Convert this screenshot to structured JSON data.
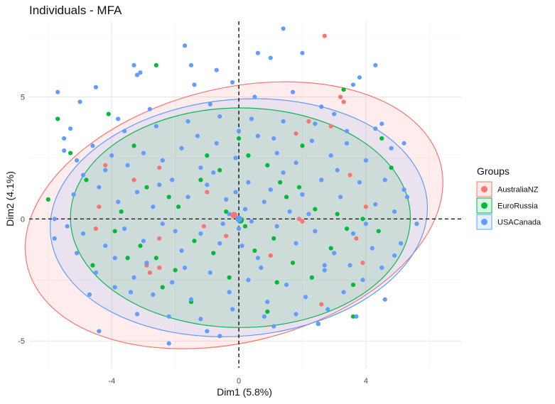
{
  "chart_data": {
    "type": "scatter",
    "title": "Individuals - MFA",
    "xlabel": "Dim1 (5.8%)",
    "ylabel": "Dim2 (4.1%)",
    "xlim": [
      -6.6,
      7.0
    ],
    "ylim": [
      -6.1,
      8.1
    ],
    "x_ticks": [
      -4,
      0,
      4
    ],
    "y_ticks": [
      -5,
      0,
      5
    ],
    "x_tick_labels": [
      "-4",
      "0",
      "4"
    ],
    "y_tick_labels": [
      "-5",
      "0",
      "5"
    ],
    "grid": true,
    "reference_lines": {
      "x": 0,
      "y": 0,
      "style": "dashed"
    },
    "legend": {
      "title": "Groups",
      "placement": "right"
    },
    "series": [
      {
        "name": "AustraliaNZ",
        "color": "#F8766D",
        "centroid": [
          -0.15,
          0.15
        ],
        "ellipse": {
          "cx": -0.15,
          "cy": 0.15,
          "rx": 6.7,
          "ry": 5.2,
          "angle_deg": 14
        },
        "points": [
          [
            2.7,
            7.5
          ],
          [
            3.2,
            5.0
          ],
          [
            3.3,
            4.8
          ],
          [
            -4.2,
            2.2
          ],
          [
            2.9,
            3.8
          ],
          [
            2.2,
            4.0
          ],
          [
            -4.4,
            0.5
          ],
          [
            -4.5,
            -0.4
          ],
          [
            -1.1,
            -0.3
          ],
          [
            1.9,
            0.0
          ],
          [
            2.0,
            -0.1
          ],
          [
            3.7,
            -0.8
          ],
          [
            4.0,
            0.5
          ],
          [
            -0.4,
            -0.7
          ],
          [
            -2.5,
            -2.0
          ],
          [
            -2.9,
            -1.9
          ],
          [
            -2.5,
            -0.8
          ],
          [
            -3.3,
            1.6
          ],
          [
            -2.5,
            2.1
          ],
          [
            -1.0,
            1.1
          ],
          [
            3.9,
            -1.8
          ],
          [
            2.6,
            -3.5
          ],
          [
            1.8,
            3.5
          ],
          [
            -2.8,
            -2.2
          ],
          [
            1.0,
            -1.5
          ],
          [
            3.5,
            1.8
          ]
        ]
      },
      {
        "name": "EuroRussia",
        "color": "#00BA38",
        "centroid": [
          0.05,
          -0.05
        ],
        "ellipse": {
          "cx": 0.05,
          "cy": 0.05,
          "rx": 5.35,
          "ry": 4.5,
          "angle_deg": 0
        },
        "points": [
          [
            -2.6,
            6.3
          ],
          [
            -5.7,
            4.1
          ],
          [
            -4.1,
            4.3
          ],
          [
            3.3,
            5.3
          ],
          [
            -6.0,
            0.8
          ],
          [
            -5.3,
            2.7
          ],
          [
            -4.8,
            1.6
          ],
          [
            -3.3,
            3.0
          ],
          [
            -2.9,
            1.3
          ],
          [
            -2.2,
            0.9
          ],
          [
            -1.2,
            1.6
          ],
          [
            -0.6,
            2.0
          ],
          [
            0.3,
            2.6
          ],
          [
            0.9,
            2.2
          ],
          [
            1.3,
            1.5
          ],
          [
            1.9,
            1.3
          ],
          [
            2.4,
            0.4
          ],
          [
            3.1,
            0.2
          ],
          [
            3.9,
            0.0
          ],
          [
            4.4,
            -0.5
          ],
          [
            -3.9,
            -0.5
          ],
          [
            -3.1,
            -1.1
          ],
          [
            -2.6,
            -1.6
          ],
          [
            -2.0,
            -2.1
          ],
          [
            -1.4,
            -0.9
          ],
          [
            -0.8,
            -1.4
          ],
          [
            -0.3,
            -2.4
          ],
          [
            0.5,
            -1.3
          ],
          [
            1.1,
            -0.8
          ],
          [
            1.7,
            -1.8
          ],
          [
            2.3,
            -2.4
          ],
          [
            2.9,
            -1.2
          ],
          [
            3.6,
            -2.7
          ],
          [
            -1.5,
            -3.4
          ],
          [
            0.9,
            -3.8
          ],
          [
            2.5,
            -4.3
          ],
          [
            3.6,
            -4.0
          ],
          [
            -0.4,
            0.3
          ],
          [
            0.2,
            -0.3
          ],
          [
            -1.9,
            0.5
          ],
          [
            1.5,
            0.9
          ],
          [
            4.8,
            2.1
          ],
          [
            -4.6,
            -1.9
          ],
          [
            -2.4,
            -2.8
          ],
          [
            0.0,
            3.3
          ],
          [
            -3.7,
            0.3
          ],
          [
            2.0,
            3.0
          ],
          [
            -1.0,
            2.6
          ],
          [
            3.4,
            -0.4
          ],
          [
            1.2,
            -2.6
          ],
          [
            -3.5,
            -1.6
          ],
          [
            4.5,
            3.3
          ]
        ]
      },
      {
        "name": "USACanada",
        "color": "#619CFF",
        "centroid": [
          0.0,
          0.0
        ],
        "ellipse": {
          "cx": 0.0,
          "cy": 0.05,
          "rx": 5.95,
          "ry": 4.85,
          "angle_deg": 5
        },
        "points": [
          [
            1.4,
            7.8
          ],
          [
            -1.7,
            7.1
          ],
          [
            -5.7,
            5.2
          ],
          [
            -5.0,
            4.8
          ],
          [
            -3.3,
            6.3
          ],
          [
            -3.1,
            6.0
          ],
          [
            -1.5,
            6.3
          ],
          [
            -0.7,
            6.1
          ],
          [
            -3.2,
            5.9
          ],
          [
            0.6,
            6.8
          ],
          [
            -1.4,
            5.5
          ],
          [
            -0.2,
            5.6
          ],
          [
            1.0,
            6.6
          ],
          [
            2.0,
            6.8
          ],
          [
            4.3,
            6.3
          ],
          [
            3.6,
            5.5
          ],
          [
            3.8,
            5.8
          ],
          [
            -4.5,
            5.4
          ],
          [
            -5.3,
            3.7
          ],
          [
            -5.5,
            3.3
          ],
          [
            4.5,
            3.9
          ],
          [
            5.2,
            3.1
          ],
          [
            -5.5,
            2.8
          ],
          [
            -4.9,
            1.8
          ],
          [
            -5.8,
            0.0
          ],
          [
            -5.8,
            -0.8
          ],
          [
            5.6,
            -0.2
          ],
          [
            5.3,
            0.9
          ],
          [
            4.9,
            -1.5
          ],
          [
            -4.4,
            -4.6
          ],
          [
            -2.2,
            -5.1
          ],
          [
            -0.6,
            -4.8
          ],
          [
            1.1,
            -4.4
          ],
          [
            3.7,
            -4.0
          ],
          [
            -4.0,
            2.6
          ],
          [
            -3.5,
            2.2
          ],
          [
            -3.0,
            2.7
          ],
          [
            -2.4,
            2.4
          ],
          [
            -1.8,
            2.9
          ],
          [
            -1.2,
            2.1
          ],
          [
            -0.7,
            3.1
          ],
          [
            -0.1,
            2.5
          ],
          [
            0.6,
            3.4
          ],
          [
            1.2,
            2.7
          ],
          [
            1.8,
            2.3
          ],
          [
            2.3,
            3.2
          ],
          [
            2.9,
            2.6
          ],
          [
            3.4,
            3.1
          ],
          [
            4.0,
            2.4
          ],
          [
            4.6,
            1.6
          ],
          [
            -4.4,
            1.3
          ],
          [
            -3.8,
            0.7
          ],
          [
            -3.2,
            1.1
          ],
          [
            -2.7,
            0.5
          ],
          [
            -2.1,
            1.6
          ],
          [
            -1.6,
            0.9
          ],
          [
            -1.0,
            1.4
          ],
          [
            -0.4,
            0.8
          ],
          [
            0.3,
            1.5
          ],
          [
            0.8,
            0.7
          ],
          [
            1.4,
            1.9
          ],
          [
            2.0,
            1.0
          ],
          [
            2.6,
            1.6
          ],
          [
            3.2,
            0.9
          ],
          [
            3.8,
            1.5
          ],
          [
            4.3,
            0.6
          ],
          [
            -4.9,
            -0.6
          ],
          [
            -4.2,
            -1.1
          ],
          [
            -3.6,
            -0.4
          ],
          [
            -3.0,
            -0.9
          ],
          [
            -2.4,
            -0.2
          ],
          [
            -1.8,
            -1.3
          ],
          [
            -1.2,
            -0.6
          ],
          [
            -0.6,
            -1.0
          ],
          [
            0.0,
            -0.4
          ],
          [
            0.6,
            -1.6
          ],
          [
            1.2,
            -0.3
          ],
          [
            1.8,
            -1.0
          ],
          [
            2.4,
            -0.5
          ],
          [
            3.0,
            -1.4
          ],
          [
            3.6,
            -0.6
          ],
          [
            4.2,
            -1.2
          ],
          [
            -4.5,
            -2.2
          ],
          [
            -3.9,
            -2.8
          ],
          [
            -3.3,
            -2.4
          ],
          [
            -2.7,
            -3.1
          ],
          [
            -2.1,
            -2.6
          ],
          [
            -1.5,
            -3.3
          ],
          [
            -0.9,
            -2.2
          ],
          [
            -0.3,
            -3.0
          ],
          [
            0.3,
            -2.5
          ],
          [
            0.9,
            -3.4
          ],
          [
            1.5,
            -2.7
          ],
          [
            2.1,
            -3.2
          ],
          [
            2.7,
            -2.1
          ],
          [
            3.3,
            -3.0
          ],
          [
            3.9,
            -2.5
          ],
          [
            4.5,
            -2.0
          ],
          [
            -3.2,
            -3.9
          ],
          [
            -2.2,
            -4.0
          ],
          [
            -1.2,
            -4.1
          ],
          [
            -0.2,
            -3.7
          ],
          [
            0.8,
            -4.0
          ],
          [
            1.8,
            -3.9
          ],
          [
            2.8,
            -3.7
          ],
          [
            -3.6,
            3.6
          ],
          [
            -2.6,
            3.8
          ],
          [
            -1.6,
            4.0
          ],
          [
            -0.6,
            4.2
          ],
          [
            0.4,
            4.1
          ],
          [
            1.4,
            4.0
          ],
          [
            2.4,
            3.9
          ],
          [
            3.4,
            3.6
          ],
          [
            -4.6,
            3.0
          ],
          [
            4.8,
            2.9
          ],
          [
            -5.2,
            1.0
          ],
          [
            5.2,
            1.2
          ],
          [
            -5.1,
            -1.4
          ],
          [
            5.1,
            -1.0
          ],
          [
            -0.3,
            0.2
          ],
          [
            0.2,
            0.4
          ],
          [
            -0.5,
            -0.2
          ],
          [
            0.4,
            -0.1
          ],
          [
            -0.1,
            1.1
          ],
          [
            0.1,
            -1.1
          ],
          [
            -2.9,
            -1.8
          ],
          [
            2.7,
            -1.9
          ],
          [
            -1.3,
            3.4
          ],
          [
            1.1,
            3.3
          ],
          [
            -3.9,
            -1.6
          ],
          [
            4.0,
            -0.2
          ],
          [
            -2.0,
            -0.5
          ],
          [
            2.2,
            0.2
          ],
          [
            -0.8,
            1.9
          ],
          [
            0.7,
            -2.0
          ],
          [
            1.6,
            0.3
          ],
          [
            -1.7,
            -2.0
          ],
          [
            3.1,
            2.0
          ],
          [
            -4.2,
            2.0
          ],
          [
            2.5,
            -4.3
          ],
          [
            -1.0,
            -4.6
          ],
          [
            0.0,
            3.6
          ],
          [
            -2.5,
            1.4
          ],
          [
            1.0,
            1.2
          ],
          [
            -3.4,
            -3.0
          ],
          [
            3.5,
            -1.9
          ],
          [
            4.3,
            3.7
          ],
          [
            -5.1,
            2.4
          ],
          [
            -2.8,
            4.5
          ],
          [
            2.6,
            4.6
          ],
          [
            0.5,
            5.0
          ],
          [
            -0.9,
            4.7
          ],
          [
            1.7,
            5.2
          ],
          [
            3.0,
            4.3
          ],
          [
            -3.8,
            4.1
          ],
          [
            4.9,
            0.3
          ],
          [
            -5.4,
            -0.3
          ],
          [
            -4.7,
            -3.1
          ],
          [
            4.6,
            -3.3
          ]
        ]
      }
    ]
  }
}
